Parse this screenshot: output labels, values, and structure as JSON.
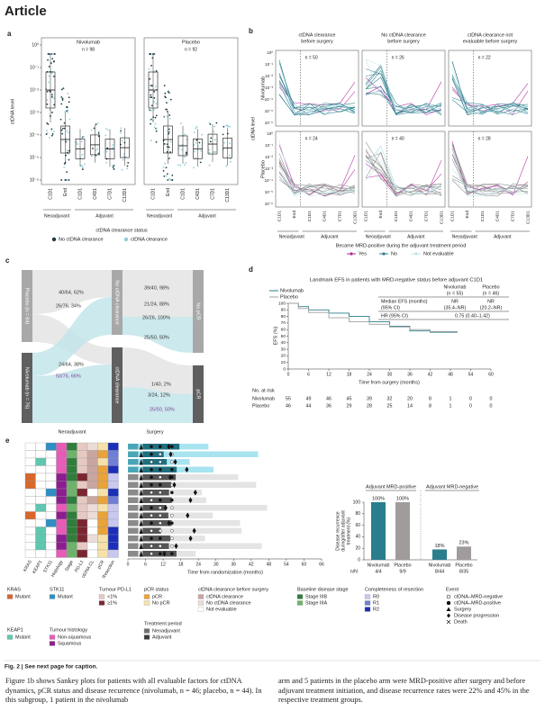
{
  "header": {
    "title": "Article"
  },
  "panel_a": {
    "letter": "a",
    "y_label": "ctDNA level",
    "yticks": [
      "10⁰",
      "10⁻¹",
      "10⁻²",
      "10⁻³",
      "10⁻⁴",
      "10⁻⁵",
      "10⁻⁶"
    ],
    "groups": [
      {
        "name": "Nivolumab",
        "n": "n = 98",
        "timepoints": [
          "C1D1",
          "End",
          "C1D1",
          "C4D1",
          "C7D1",
          "C13D1"
        ],
        "periods": [
          "Neoadjuvant",
          "Adjuvant"
        ]
      },
      {
        "name": "Placebo",
        "n": "n = 92",
        "timepoints": [
          "C1D1",
          "End",
          "C1D1",
          "C4D1",
          "C7D1",
          "C13D1"
        ],
        "periods": [
          "Neoadjuvant",
          "Adjuvant"
        ]
      }
    ],
    "legend_title": "ctDNA clearance status",
    "legend": [
      {
        "label": "No ctDNA clearance",
        "color": "#1d3a44"
      },
      {
        "label": "ctDNA clearance",
        "color": "#8fcfd8"
      }
    ]
  },
  "panel_b": {
    "letter": "b",
    "y_label": "ctDNA level",
    "yticks": [
      "10⁰",
      "10⁻¹",
      "10⁻²",
      "10⁻³",
      "10⁻⁴",
      "10⁻⁵",
      "10⁻⁶"
    ],
    "columns": [
      {
        "title": [
          "ctDNA clearance",
          "before surgery"
        ],
        "timepoints": [
          "C1D1",
          "End",
          "C1D1",
          "C4D1",
          "C7D1",
          "C13D1"
        ],
        "periods": [
          "Neoadjuvant",
          "Adjuvant"
        ]
      },
      {
        "title": [
          "No ctDNA clearance",
          "before surgery"
        ],
        "timepoints": [
          "C1D1",
          "End",
          "C1D1",
          "C4D1",
          "C7D1",
          "C13D1"
        ],
        "periods": [
          "Neoadjuvant",
          "Adjuvant"
        ]
      },
      {
        "title": [
          "ctDNA clearance not",
          "evaluable before surgery"
        ],
        "timepoints": [
          "C1D1",
          "End",
          "C1D1",
          "C4D1",
          "C7D1",
          "C13D1"
        ],
        "periods": [
          "Neoadjuvant",
          "Adjuvant"
        ]
      }
    ],
    "rows": [
      {
        "name": "Nivolumab",
        "color": "#2a7d8c",
        "n": [
          "n = 50",
          "n = 26",
          "n = 22"
        ]
      },
      {
        "name": "Placebo",
        "color": "#8a8a8a",
        "n": [
          "n = 24",
          "n = 40",
          "n = 28"
        ]
      }
    ],
    "legend_title": "Became MRD-positive during the adjuvant treatment period",
    "legend": [
      {
        "label": "Yes",
        "color": "#b0279b"
      },
      {
        "label": "No",
        "color": "#2a7d8c"
      },
      {
        "label": "Not evaluable",
        "color": "#bfe3e8"
      }
    ]
  },
  "panel_c": {
    "letter": "c",
    "nodes": [
      "Placebo (n = 64)",
      "Nivolumab (n = 76)",
      "No ctDNA clearance",
      "ctDNA clearance",
      "No pCR",
      "pCR"
    ],
    "flows": [
      "40/64, 62%",
      "26/76, 34%",
      "24/64, 38%",
      "50/76, 66%",
      "39/40, 98%",
      "21/24, 88%",
      "26/26, 100%",
      "25/50, 50%",
      "1/40, 2%",
      "3/24, 12%",
      "25/50, 50%"
    ],
    "stages": [
      "Neoadjuvant",
      "Surgery"
    ]
  },
  "panel_d": {
    "letter": "d",
    "title": "Landmark EFS in patients with MRD-negative status before adjuvant C1D1",
    "y_label": "EFS (%)",
    "x_label": "Time from surgery (months)",
    "xlim": [
      0,
      60
    ],
    "ylim": [
      0,
      100
    ],
    "xticks": [
      0,
      6,
      12,
      18,
      24,
      30,
      36,
      42,
      48,
      54,
      60
    ],
    "yticks": [
      0,
      10,
      20,
      30,
      40,
      50,
      60,
      70,
      80,
      90,
      100
    ],
    "series": [
      {
        "name": "Nivolumab",
        "color": "#2a7d8c",
        "x": [
          0,
          3,
          6,
          12,
          18,
          24,
          30,
          36,
          42,
          50
        ],
        "values": [
          100,
          95,
          90,
          85,
          80,
          72,
          65,
          58,
          56,
          56
        ]
      },
      {
        "name": "Placebo",
        "color": "#a0a0a0",
        "x": [
          0,
          3,
          6,
          12,
          18,
          24,
          30,
          36,
          42,
          50
        ],
        "values": [
          100,
          92,
          86,
          78,
          72,
          68,
          64,
          60,
          57,
          55
        ]
      }
    ],
    "stats_table": {
      "headers": [
        "Nivolumab",
        "(n = 55)",
        "Placebo",
        "(n = 46)"
      ],
      "rows": [
        [
          "Median EFS (months)",
          "NR",
          "NR"
        ],
        [
          "(95% CI)",
          "(35.4–NR)",
          "(20.2–NR)"
        ],
        [
          "HR (95% CI)",
          "0.75 (0.40–1.42)"
        ]
      ]
    },
    "risk_title": "No. at risk",
    "risk": [
      {
        "name": "Nivolumab",
        "counts": [
          55,
          49,
          46,
          45,
          39,
          32,
          20,
          8,
          1,
          0,
          0
        ]
      },
      {
        "name": "Placebo",
        "counts": [
          46,
          44,
          36,
          29,
          28,
          25,
          14,
          8,
          1,
          0,
          0
        ]
      }
    ]
  },
  "panel_e": {
    "letter": "e",
    "heatmap_columns": [
      "KRAS",
      "KEAP1",
      "STK11",
      "Histology",
      "Stage",
      "PD-L1",
      "ctDNA CL",
      "pCR",
      "Resection"
    ],
    "swimmer_x_label": "Time from randomization (months)",
    "swimmer_xticks": [
      0,
      6,
      12,
      18,
      24,
      30,
      36,
      42,
      48,
      54,
      60,
      66
    ],
    "bar_chart": {
      "groups": [
        "Adjuvant MRD-positive",
        "Adjuvant MRD-negative"
      ],
      "categories": [
        "Nivolumab",
        "Placebo",
        "Nivolumab",
        "Placebo"
      ],
      "n_over_N": [
        "4/4",
        "9/9",
        "8/44",
        "8/35"
      ],
      "n_label": "n/N",
      "values": [
        100,
        100,
        18,
        23
      ],
      "value_labels": [
        "100%",
        "100%",
        "18%",
        "23%"
      ],
      "colors": [
        "#2a7d8c",
        "#a09c9c",
        "#2a7d8c",
        "#a09c9c"
      ],
      "y_label": [
        "Disease recurrence",
        "during/after adjuvant",
        "treatment (%)"
      ],
      "ylim": [
        0,
        100
      ],
      "yticks": [
        0,
        20,
        40,
        60,
        80,
        100
      ]
    }
  },
  "legend": [
    {
      "title": "KRAS",
      "items": [
        {
          "label": "Mutant",
          "color": "#d9662b"
        }
      ]
    },
    {
      "title": "STK11",
      "items": [
        {
          "label": "Mutant",
          "color": "#2f8fc4"
        }
      ]
    },
    {
      "title": "Tumour PD-L1",
      "items": [
        {
          "label": "<1%",
          "color": "#e7c9c4"
        },
        {
          "label": "≥1%",
          "color": "#7a2630"
        }
      ]
    },
    {
      "title": "pCR status",
      "items": [
        {
          "label": "pCR",
          "color": "#e8a33a"
        },
        {
          "label": "No pCR",
          "color": "#f6e2a8"
        }
      ]
    },
    {
      "title": "ctDNA clearance before surgery",
      "items": [
        {
          "label": "ctDNA clearance",
          "color": "#c9a6a0"
        },
        {
          "label": "No ctDNA clearance",
          "color": "#ecdcd8"
        },
        {
          "label": "Not evaluable",
          "color": "#ffffff"
        }
      ]
    },
    {
      "title": "Baseline disease stage",
      "items": [
        {
          "label": "Stage IIIB",
          "color": "#2f7d3a"
        },
        {
          "label": "Stage IIIA",
          "color": "#6db36a"
        }
      ]
    },
    {
      "title": "Completeness of resection",
      "items": [
        {
          "label": "R0",
          "color": "#c8c8f0"
        },
        {
          "label": "R1",
          "color": "#6f7fd6"
        },
        {
          "label": "R2",
          "color": "#1c2fb8"
        }
      ]
    },
    {
      "title": "Event",
      "items": [
        {
          "label": "ctDNA–MRD-negative"
        },
        {
          "label": "ctDNA–MRD-positive"
        },
        {
          "label": "Surgery"
        },
        {
          "label": "Disease progression"
        },
        {
          "label": "Death"
        }
      ]
    },
    {
      "title": "KEAP1",
      "items": [
        {
          "label": "Mutant",
          "color": "#5ec7b0"
        }
      ]
    },
    {
      "title": "Tumour histology",
      "items": [
        {
          "label": "Non-squamous",
          "color": "#e85ab8"
        },
        {
          "label": "Squamous",
          "color": "#8c1d8f"
        }
      ]
    },
    {
      "title": "Treatment period",
      "items": [
        {
          "label": "Neoadjuvant",
          "color": "#6f6f6f"
        },
        {
          "label": "Adjuvant",
          "color": "#3a3a3a"
        }
      ]
    }
  ],
  "caption": "Fig. 2 | See next page for caption.",
  "body": [
    "Figure 1b shows Sankey plots for patients with all evaluable factors for ctDNA dynamics, pCR status and disease recurrence (nivolumab, n = 46; placebo, n = 44). In this subgroup, 1 patient in the nivolumab",
    "arm and 5 patients in the placebo arm were MRD-positive after surgery and before adjuvant treatment initiation, and disease recurrence rates were 22% and 45% in the respective treatment groups."
  ]
}
